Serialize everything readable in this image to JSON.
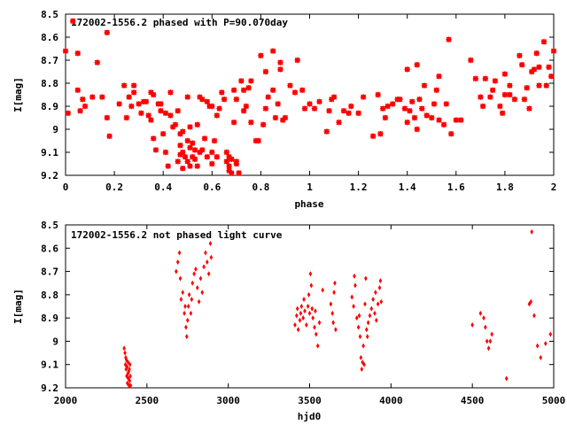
{
  "chart_data": [
    {
      "type": "scatter",
      "title": "172002-1556.2 phased with P=90.070day",
      "xlabel": "phase",
      "ylabel": "I[mag]",
      "xlim": [
        0,
        2
      ],
      "ylim": [
        9.2,
        8.5
      ],
      "y_inverted": true,
      "xticks": [
        0,
        0.2,
        0.4,
        0.6,
        0.8,
        1,
        1.2,
        1.4,
        1.6,
        1.8,
        2
      ],
      "yticks": [
        8.5,
        8.6,
        8.7,
        8.8,
        8.9,
        9,
        9.1,
        9.2
      ],
      "xtick_labels": [
        "0",
        "0.2",
        "0.4",
        "0.6",
        "0.8",
        "1",
        "1.2",
        "1.4",
        "1.6",
        "1.8",
        "2"
      ],
      "ytick_labels": [
        "8.5",
        "8.6",
        "8.7",
        "8.8",
        "8.9",
        "9",
        "9.1",
        "9.2"
      ],
      "marker_color": "#ff0000",
      "marker": "star",
      "grid": false,
      "points": [
        [
          0.0,
          8.66
        ],
        [
          0.01,
          8.93
        ],
        [
          0.03,
          8.53
        ],
        [
          0.05,
          8.67
        ],
        [
          0.05,
          8.83
        ],
        [
          0.06,
          8.92
        ],
        [
          0.07,
          8.87
        ],
        [
          0.08,
          8.9
        ],
        [
          0.11,
          8.86
        ],
        [
          0.13,
          8.71
        ],
        [
          0.15,
          8.86
        ],
        [
          0.17,
          8.95
        ],
        [
          0.17,
          8.58
        ],
        [
          0.18,
          9.03
        ],
        [
          0.22,
          8.89
        ],
        [
          0.24,
          8.81
        ],
        [
          0.25,
          8.95
        ],
        [
          0.26,
          8.86
        ],
        [
          0.27,
          8.9
        ],
        [
          0.28,
          8.84
        ],
        [
          0.28,
          8.81
        ],
        [
          0.3,
          8.89
        ],
        [
          0.31,
          8.93
        ],
        [
          0.32,
          8.88
        ],
        [
          0.33,
          8.88
        ],
        [
          0.34,
          8.94
        ],
        [
          0.35,
          8.84
        ],
        [
          0.35,
          8.96
        ],
        [
          0.36,
          8.85
        ],
        [
          0.36,
          9.04
        ],
        [
          0.37,
          9.09
        ],
        [
          0.38,
          8.89
        ],
        [
          0.39,
          8.89
        ],
        [
          0.39,
          8.92
        ],
        [
          0.4,
          9.02
        ],
        [
          0.41,
          8.93
        ],
        [
          0.41,
          9.1
        ],
        [
          0.42,
          9.16
        ],
        [
          0.43,
          8.94
        ],
        [
          0.43,
          8.84
        ],
        [
          0.44,
          8.99
        ],
        [
          0.45,
          8.98
        ],
        [
          0.46,
          8.92
        ],
        [
          0.46,
          9.14
        ],
        [
          0.47,
          9.07
        ],
        [
          0.47,
          9.11
        ],
        [
          0.47,
          9.02
        ],
        [
          0.48,
          9.17
        ],
        [
          0.48,
          9.1
        ],
        [
          0.48,
          9.01
        ],
        [
          0.49,
          9.12
        ],
        [
          0.5,
          8.86
        ],
        [
          0.5,
          9.05
        ],
        [
          0.5,
          9.14
        ],
        [
          0.51,
          9.08
        ],
        [
          0.51,
          8.99
        ],
        [
          0.51,
          9.16
        ],
        [
          0.52,
          9.06
        ],
        [
          0.52,
          9.12
        ],
        [
          0.53,
          9.09
        ],
        [
          0.53,
          9.13
        ],
        [
          0.54,
          9.16
        ],
        [
          0.54,
          8.98
        ],
        [
          0.55,
          9.1
        ],
        [
          0.55,
          8.86
        ],
        [
          0.56,
          9.09
        ],
        [
          0.56,
          8.87
        ],
        [
          0.57,
          9.04
        ],
        [
          0.58,
          9.12
        ],
        [
          0.58,
          8.88
        ],
        [
          0.59,
          8.9
        ],
        [
          0.6,
          8.9
        ],
        [
          0.6,
          9.15
        ],
        [
          0.6,
          9.1
        ],
        [
          0.61,
          9.05
        ],
        [
          0.62,
          9.12
        ],
        [
          0.62,
          8.94
        ],
        [
          0.63,
          8.91
        ],
        [
          0.64,
          8.84
        ],
        [
          0.65,
          8.87
        ],
        [
          0.66,
          9.14
        ],
        [
          0.66,
          9.1
        ],
        [
          0.67,
          9.18
        ],
        [
          0.67,
          9.12
        ],
        [
          0.67,
          9.16
        ],
        [
          0.68,
          9.19
        ],
        [
          0.68,
          9.13
        ],
        [
          0.69,
          8.83
        ],
        [
          0.69,
          8.97
        ],
        [
          0.7,
          9.14
        ],
        [
          0.7,
          9.15
        ],
        [
          0.7,
          8.87
        ],
        [
          0.71,
          9.19
        ],
        [
          0.72,
          8.79
        ],
        [
          0.73,
          8.92
        ],
        [
          0.73,
          8.83
        ],
        [
          0.74,
          8.9
        ],
        [
          0.75,
          8.82
        ],
        [
          0.76,
          8.97
        ],
        [
          0.76,
          8.79
        ],
        [
          0.78,
          9.05
        ],
        [
          0.79,
          9.05
        ],
        [
          0.8,
          8.68
        ],
        [
          0.81,
          8.98
        ],
        [
          0.82,
          8.75
        ],
        [
          0.82,
          8.91
        ],
        [
          0.83,
          8.86
        ],
        [
          0.85,
          8.66
        ],
        [
          0.85,
          8.83
        ],
        [
          0.86,
          8.95
        ],
        [
          0.87,
          8.89
        ],
        [
          0.88,
          8.74
        ],
        [
          0.88,
          8.71
        ],
        [
          0.89,
          8.96
        ],
        [
          0.9,
          8.95
        ],
        [
          0.92,
          8.81
        ],
        [
          0.94,
          8.84
        ],
        [
          0.95,
          8.7
        ],
        [
          0.97,
          8.83
        ],
        [
          0.98,
          8.91
        ],
        [
          1.0,
          8.89
        ],
        [
          1.02,
          8.91
        ],
        [
          1.04,
          8.88
        ],
        [
          1.07,
          9.01
        ],
        [
          1.08,
          8.92
        ],
        [
          1.09,
          8.87
        ],
        [
          1.1,
          8.86
        ],
        [
          1.12,
          8.97
        ],
        [
          1.14,
          8.92
        ],
        [
          1.16,
          8.93
        ],
        [
          1.17,
          8.9
        ],
        [
          1.2,
          8.93
        ],
        [
          1.22,
          8.86
        ],
        [
          1.26,
          9.03
        ],
        [
          1.28,
          8.85
        ],
        [
          1.29,
          9.02
        ],
        [
          1.3,
          8.91
        ],
        [
          1.31,
          8.95
        ],
        [
          1.32,
          8.9
        ],
        [
          1.34,
          8.89
        ],
        [
          1.36,
          8.87
        ],
        [
          1.37,
          8.87
        ],
        [
          1.39,
          8.91
        ],
        [
          1.4,
          8.97
        ],
        [
          1.4,
          8.74
        ],
        [
          1.41,
          8.92
        ],
        [
          1.42,
          8.88
        ],
        [
          1.43,
          8.95
        ],
        [
          1.44,
          9.0
        ],
        [
          1.44,
          8.72
        ],
        [
          1.45,
          8.87
        ],
        [
          1.46,
          8.91
        ],
        [
          1.47,
          8.81
        ],
        [
          1.48,
          8.94
        ],
        [
          1.5,
          8.95
        ],
        [
          1.51,
          8.89
        ],
        [
          1.52,
          8.83
        ],
        [
          1.53,
          8.77
        ],
        [
          1.53,
          8.96
        ],
        [
          1.55,
          8.98
        ],
        [
          1.56,
          8.89
        ],
        [
          1.57,
          8.61
        ],
        [
          1.58,
          9.02
        ],
        [
          1.6,
          8.96
        ],
        [
          1.62,
          8.96
        ],
        [
          1.66,
          8.7
        ],
        [
          1.68,
          8.78
        ],
        [
          1.7,
          8.86
        ],
        [
          1.71,
          8.9
        ],
        [
          1.72,
          8.78
        ],
        [
          1.74,
          8.86
        ],
        [
          1.75,
          8.83
        ],
        [
          1.76,
          8.79
        ],
        [
          1.78,
          8.9
        ],
        [
          1.79,
          8.93
        ],
        [
          1.8,
          8.85
        ],
        [
          1.8,
          8.76
        ],
        [
          1.82,
          8.85
        ],
        [
          1.82,
          8.81
        ],
        [
          1.84,
          8.87
        ],
        [
          1.86,
          8.68
        ],
        [
          1.87,
          8.72
        ],
        [
          1.88,
          8.87
        ],
        [
          1.89,
          8.82
        ],
        [
          1.9,
          8.91
        ],
        [
          1.91,
          8.75
        ],
        [
          1.92,
          8.74
        ],
        [
          1.93,
          8.67
        ],
        [
          1.94,
          8.73
        ],
        [
          1.94,
          8.81
        ],
        [
          1.96,
          8.62
        ],
        [
          1.97,
          8.81
        ],
        [
          1.98,
          8.73
        ],
        [
          1.99,
          8.77
        ],
        [
          2.0,
          8.66
        ]
      ]
    },
    {
      "type": "scatter",
      "title": "172002-1556.2 not phased light curve",
      "xlabel": "hjd0",
      "ylabel": "I[mag]",
      "xlim": [
        2000,
        5000
      ],
      "ylim": [
        9.2,
        8.5
      ],
      "y_inverted": true,
      "xticks": [
        2000,
        2500,
        3000,
        3500,
        4000,
        4500,
        5000
      ],
      "yticks": [
        8.5,
        8.6,
        8.7,
        8.8,
        8.9,
        9,
        9.1,
        9.2
      ],
      "xtick_labels": [
        "2000",
        "2500",
        "3000",
        "3500",
        "4000",
        "4500",
        "5000"
      ],
      "ytick_labels": [
        "8.5",
        "8.6",
        "8.7",
        "8.8",
        "8.9",
        "9",
        "9.1",
        "9.2"
      ],
      "marker_color": "#ff0000",
      "marker": "diamond",
      "grid": false,
      "points": [
        [
          2360,
          9.03
        ],
        [
          2365,
          9.05
        ],
        [
          2368,
          9.1
        ],
        [
          2370,
          9.07
        ],
        [
          2372,
          9.12
        ],
        [
          2374,
          9.08
        ],
        [
          2376,
          9.15
        ],
        [
          2378,
          9.11
        ],
        [
          2380,
          9.18
        ],
        [
          2382,
          9.14
        ],
        [
          2384,
          9.09
        ],
        [
          2386,
          9.16
        ],
        [
          2388,
          9.13
        ],
        [
          2390,
          9.19
        ],
        [
          2392,
          9.12
        ],
        [
          2394,
          9.17
        ],
        [
          2396,
          9.1
        ],
        [
          2398,
          9.15
        ],
        [
          2400,
          9.19
        ],
        [
          2680,
          8.7
        ],
        [
          2690,
          8.66
        ],
        [
          2700,
          8.62
        ],
        [
          2705,
          8.73
        ],
        [
          2710,
          8.82
        ],
        [
          2720,
          8.79
        ],
        [
          2730,
          8.88
        ],
        [
          2735,
          8.85
        ],
        [
          2740,
          8.94
        ],
        [
          2745,
          8.98
        ],
        [
          2750,
          8.91
        ],
        [
          2755,
          8.85
        ],
        [
          2760,
          8.8
        ],
        [
          2770,
          8.88
        ],
        [
          2775,
          8.82
        ],
        [
          2780,
          8.75
        ],
        [
          2790,
          8.71
        ],
        [
          2800,
          8.69
        ],
        [
          2810,
          8.77
        ],
        [
          2820,
          8.83
        ],
        [
          2830,
          8.73
        ],
        [
          2840,
          8.79
        ],
        [
          2850,
          8.68
        ],
        [
          2860,
          8.62
        ],
        [
          2870,
          8.66
        ],
        [
          2880,
          8.71
        ],
        [
          2890,
          8.58
        ],
        [
          2895,
          8.64
        ],
        [
          3410,
          8.93
        ],
        [
          3420,
          8.89
        ],
        [
          3425,
          8.86
        ],
        [
          3430,
          8.95
        ],
        [
          3440,
          8.91
        ],
        [
          3445,
          8.88
        ],
        [
          3450,
          8.85
        ],
        [
          3460,
          8.9
        ],
        [
          3465,
          8.82
        ],
        [
          3470,
          8.87
        ],
        [
          3480,
          8.93
        ],
        [
          3490,
          8.85
        ],
        [
          3495,
          8.8
        ],
        [
          3500,
          8.88
        ],
        [
          3505,
          8.71
        ],
        [
          3510,
          8.76
        ],
        [
          3515,
          8.86
        ],
        [
          3520,
          8.9
        ],
        [
          3530,
          8.94
        ],
        [
          3535,
          8.87
        ],
        [
          3540,
          8.97
        ],
        [
          3550,
          9.02
        ],
        [
          3560,
          8.92
        ],
        [
          3580,
          8.78
        ],
        [
          3630,
          8.84
        ],
        [
          3640,
          8.88
        ],
        [
          3645,
          8.92
        ],
        [
          3650,
          8.79
        ],
        [
          3655,
          8.75
        ],
        [
          3660,
          8.95
        ],
        [
          3760,
          8.81
        ],
        [
          3770,
          8.85
        ],
        [
          3775,
          8.72
        ],
        [
          3780,
          8.76
        ],
        [
          3790,
          8.9
        ],
        [
          3800,
          8.94
        ],
        [
          3805,
          8.89
        ],
        [
          3810,
          8.98
        ],
        [
          3815,
          9.07
        ],
        [
          3820,
          9.12
        ],
        [
          3825,
          9.09
        ],
        [
          3830,
          9.02
        ],
        [
          3835,
          9.1
        ],
        [
          3840,
          8.84
        ],
        [
          3845,
          8.73
        ],
        [
          3850,
          8.95
        ],
        [
          3855,
          8.98
        ],
        [
          3860,
          8.92
        ],
        [
          3870,
          8.89
        ],
        [
          3880,
          8.86
        ],
        [
          3890,
          8.82
        ],
        [
          3900,
          8.88
        ],
        [
          3905,
          8.79
        ],
        [
          3910,
          8.91
        ],
        [
          3920,
          8.84
        ],
        [
          3930,
          8.77
        ],
        [
          3935,
          8.74
        ],
        [
          3940,
          8.83
        ],
        [
          4500,
          8.93
        ],
        [
          4550,
          8.88
        ],
        [
          4570,
          8.9
        ],
        [
          4580,
          8.94
        ],
        [
          4590,
          9.0
        ],
        [
          4600,
          9.03
        ],
        [
          4610,
          9.0
        ],
        [
          4620,
          8.97
        ],
        [
          4710,
          9.16
        ],
        [
          4850,
          8.84
        ],
        [
          4860,
          8.83
        ],
        [
          4865,
          8.53
        ],
        [
          4880,
          8.89
        ],
        [
          4900,
          9.02
        ],
        [
          4920,
          9.07
        ],
        [
          4950,
          9.01
        ],
        [
          4980,
          8.97
        ]
      ]
    }
  ]
}
